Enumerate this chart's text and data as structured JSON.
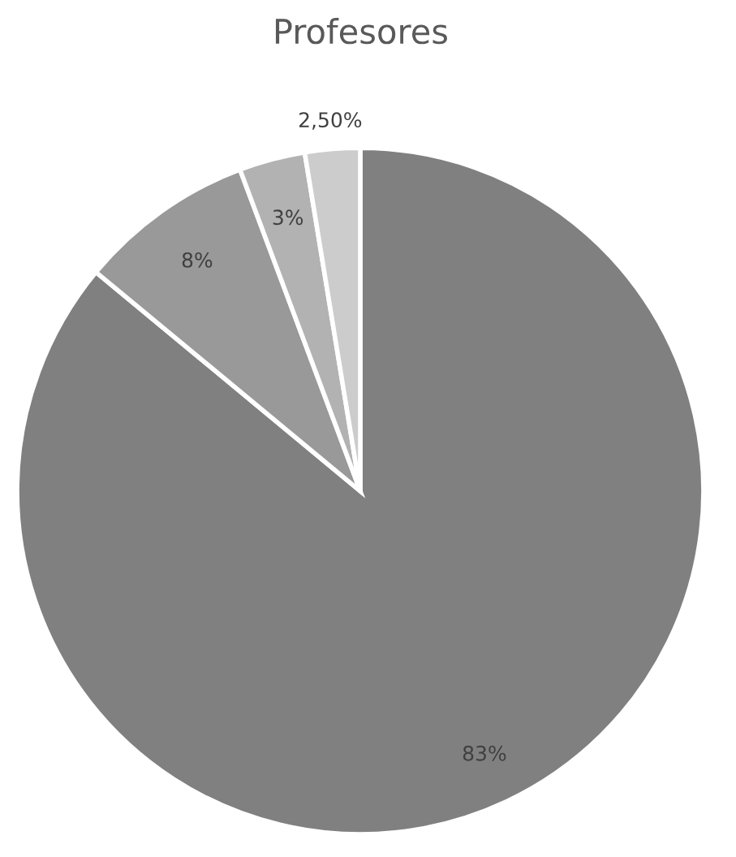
{
  "chart_data": {
    "type": "pie",
    "title": "Profesores",
    "categories": [
      null,
      null,
      null,
      null
    ],
    "values": [
      83,
      8,
      3,
      2.5
    ],
    "value_labels": [
      "83%",
      "8%",
      "3%",
      "2,50%"
    ],
    "colors": [
      "#808080",
      "#999999",
      "#b2b2b2",
      "#cccccc"
    ]
  }
}
